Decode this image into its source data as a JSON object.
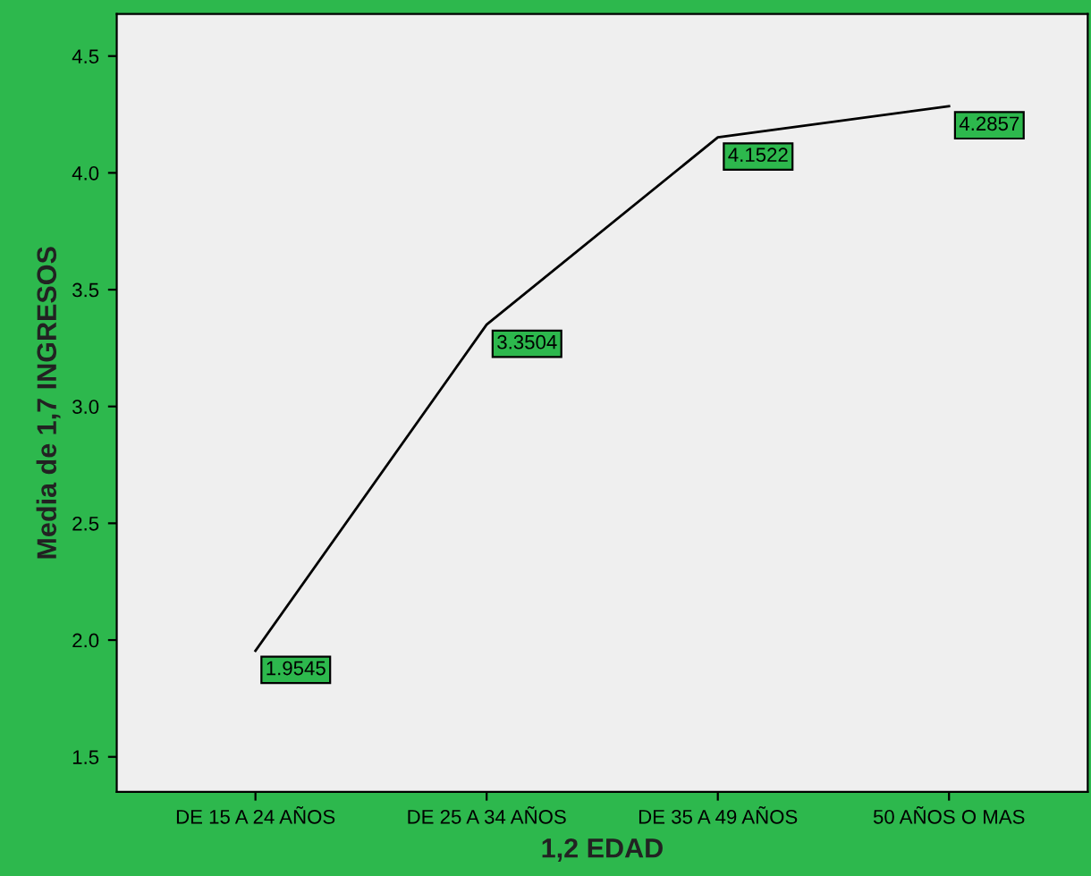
{
  "chart_data": {
    "type": "line",
    "xlabel": "1,2 EDAD",
    "ylabel": "Media de 1,7 INGRESOS",
    "categories": [
      "DE 15 A 24 AÑOS",
      "DE 25 A 34 AÑOS",
      "DE 35 A 49 AÑOS",
      "50 AÑOS O MAS"
    ],
    "series": [
      {
        "color": "#000000",
        "values": [
          1.9545,
          3.3504,
          4.1522,
          4.2857
        ]
      }
    ],
    "data_labels": true,
    "ylim": [
      1.35,
      4.68
    ],
    "yticks": [
      1.5,
      {
        "value": 2,
        "label": "2.0"
      },
      2.5,
      {
        "value": 3,
        "label": "3.0"
      },
      3.5,
      {
        "value": 4,
        "label": "4.0"
      },
      4.5
    ],
    "grid": false,
    "legend": false,
    "marker": "none",
    "line_style": "solid"
  }
}
